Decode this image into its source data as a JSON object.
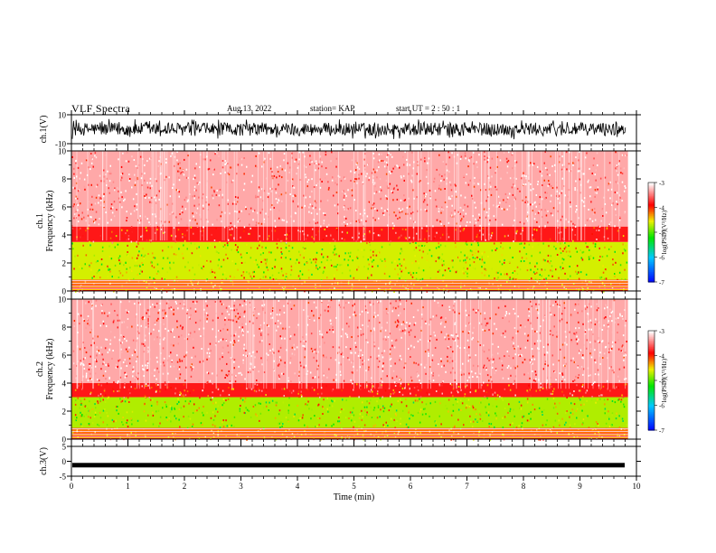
{
  "header": {
    "title": "VLF Spectra",
    "date": "Aug.13, 2022",
    "station": "station= KAP",
    "start": "start  UT  =   2  : 50 : 1"
  },
  "chart_data": [
    {
      "type": "line",
      "name": "ch1-waveform",
      "ylabel": "ch.1(V)",
      "ylim": [
        -10,
        10
      ],
      "yticks": [
        "10",
        "-10"
      ],
      "xlim": [
        0,
        10
      ],
      "trace_level_range": [
        -7,
        7
      ]
    },
    {
      "type": "heatmap",
      "name": "ch1-spectrogram",
      "ylabel": "ch.1\nFrequency (kHz)",
      "ylim": [
        0,
        10
      ],
      "yticks": [
        "0",
        "2",
        "4",
        "6",
        "8",
        "10"
      ],
      "xlim": [
        0,
        9.85
      ],
      "colorbar": {
        "label": "log(PSD)(V²/Hz)",
        "min": -7,
        "max": -3,
        "ticks": [
          "-3",
          "-4",
          "-5",
          "-6",
          "-7"
        ]
      },
      "bands_khz": [
        {
          "range": [
            0,
            0.8
          ],
          "log_psd": -3.9
        },
        {
          "range": [
            0.8,
            3.5
          ],
          "log_psd": -4.6
        },
        {
          "range": [
            3.5,
            4.6
          ],
          "log_psd": -3.8
        },
        {
          "range": [
            4.6,
            10
          ],
          "log_psd": -3.3
        }
      ]
    },
    {
      "type": "heatmap",
      "name": "ch2-spectrogram",
      "ylabel": "ch.2\nFrequency (kHz)",
      "ylim": [
        0,
        10
      ],
      "yticks": [
        "0",
        "2",
        "4",
        "6",
        "8",
        "10"
      ],
      "xlim": [
        0,
        9.85
      ],
      "colorbar": {
        "label": "log(PSD)(V²/Hz)",
        "min": -7,
        "max": -3,
        "ticks": [
          "-3",
          "-4",
          "-5",
          "-6",
          "-7"
        ]
      },
      "bands_khz": [
        {
          "range": [
            0,
            0.8
          ],
          "log_psd": -3.9
        },
        {
          "range": [
            0.8,
            3.0
          ],
          "log_psd": -4.7
        },
        {
          "range": [
            3.0,
            4.0
          ],
          "log_psd": -3.8
        },
        {
          "range": [
            4.0,
            10
          ],
          "log_psd": -3.3
        }
      ]
    },
    {
      "type": "line",
      "name": "ch3-waveform",
      "ylabel": "ch.3(V)",
      "ylim": [
        -5,
        5
      ],
      "yticks": [
        "5",
        "0",
        "-5"
      ],
      "xlim": [
        0,
        10
      ],
      "trace_level": -1.3
    }
  ],
  "xaxis": {
    "label": "Time (min)",
    "ticks": [
      "0",
      "1",
      "2",
      "3",
      "4",
      "5",
      "6",
      "7",
      "8",
      "9",
      "10"
    ]
  }
}
